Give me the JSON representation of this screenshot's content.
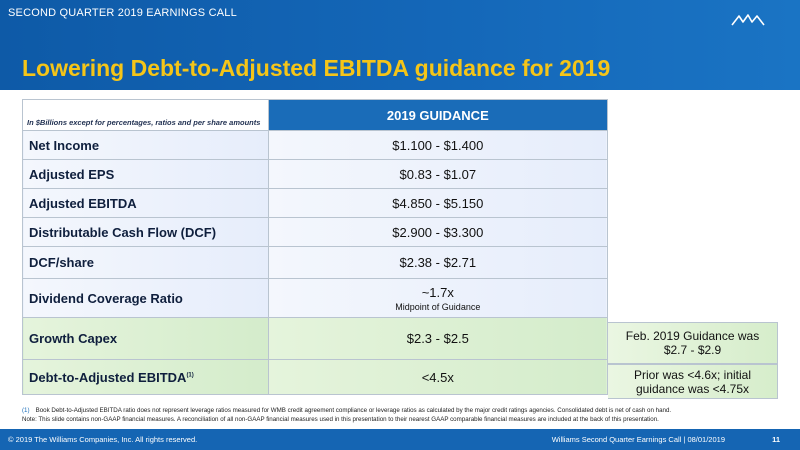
{
  "header": {
    "eyebrow": "SECOND QUARTER 2019 EARNINGS CALL",
    "logo_text": "Williams",
    "title": "Lowering Debt-to-Adjusted EBITDA guidance for 2019"
  },
  "table": {
    "header_note": "In $Billions except for percentages, ratios and per share amounts",
    "column_header": "2019 GUIDANCE",
    "rows": [
      {
        "label": "Net Income",
        "value": "$1.100 - $1.400"
      },
      {
        "label": "Adjusted EPS",
        "value": "$0.83 - $1.07"
      },
      {
        "label": "Adjusted EBITDA",
        "value": "$4.850 - $5.150"
      },
      {
        "label": "Distributable Cash Flow (DCF)",
        "value": "$2.900 - $3.300"
      },
      {
        "label": "DCF/share",
        "value": "$2.38 - $2.71"
      },
      {
        "label": "Dividend Coverage Ratio",
        "value": "~1.7x",
        "sub": "Midpoint of Guidance"
      },
      {
        "label": "Growth Capex",
        "value": "$2.3 - $2.5",
        "note": "Feb. 2019 Guidance was $2.7 - $2.9"
      },
      {
        "label": "Debt-to-Adjusted EBITDA",
        "label_sup": "(1)",
        "value": "<4.5x",
        "note": "Prior was <4.6x; initial guidance was <4.75x"
      }
    ]
  },
  "footnotes": {
    "num": "(1)",
    "line1": "Book Debt-to-Adjusted EBITDA ratio does not represent leverage ratios measured for WMB credit agreement compliance or leverage ratios as calculated by the major credit ratings agencies. Consolidated debt is net of cash on hand.",
    "line2": "Note: This slide contains non-GAAP financial measures. A reconciliation of all non-GAAP financial measures used in this presentation to their nearest GAAP comparable financial measures are included at the back of this presentation."
  },
  "footer": {
    "copyright": "© 2019 The Williams Companies, Inc. All rights reserved.",
    "event": "Williams Second Quarter Earnings Call   |   08/01/2019",
    "page": "11"
  },
  "colors": {
    "brand_blue": "#1565b3",
    "title_yellow": "#f5c518",
    "highlight_green": "#d4eccb"
  }
}
